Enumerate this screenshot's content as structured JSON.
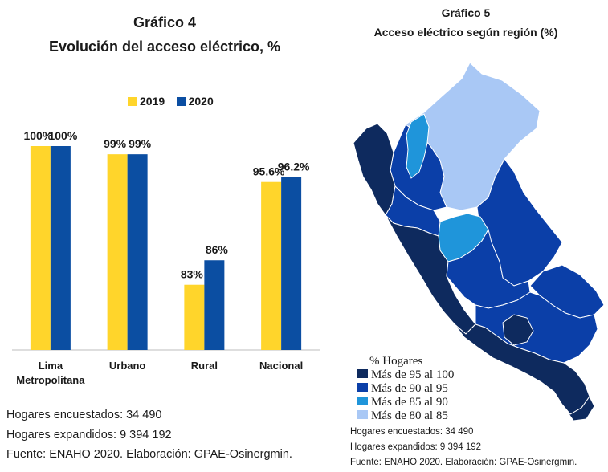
{
  "chart4": {
    "title": "Gráfico 4",
    "subtitle": "Evolución del acceso eléctrico, %",
    "colors": {
      "2019": "#FFD52B",
      "2020": "#0B4EA2"
    },
    "footnotes": [
      "Hogares encuestados: 34 490",
      "Hogares expandidos: 9 394 192",
      "Fuente: ENAHO 2020. Elaboración: GPAE-Osinergmin."
    ]
  },
  "chart5": {
    "title": "Gráfico 5",
    "subtitle": "Acceso eléctrico según región (%)",
    "legend_title": "% Hogares",
    "legend": [
      {
        "label": "Más de 95 al 100",
        "color": "#0E2A5E"
      },
      {
        "label": "Más de 90 al 95",
        "color": "#0B3FA8"
      },
      {
        "label": "Más de 85 al 90",
        "color": "#1F95DA"
      },
      {
        "label": "Más de 80 al 85",
        "color": "#A9C8F5"
      }
    ],
    "footnotes": [
      "Hogares encuestados: 34 490",
      "Hogares expandidos: 9 394 192",
      "Fuente: ENAHO 2020. Elaboración: GPAE-Osinergmin."
    ]
  },
  "chart_data": [
    {
      "type": "bar",
      "title": "Gráfico 4",
      "subtitle": "Evolución del acceso eléctrico, %",
      "categories": [
        "Lima Metropolitana",
        "Urbano",
        "Rural",
        "Nacional"
      ],
      "category_lines": [
        [
          "Lima",
          "Metropolitana"
        ],
        [
          "Urbano"
        ],
        [
          "Rural"
        ],
        [
          "Nacional"
        ]
      ],
      "series": [
        {
          "name": "2019",
          "values": [
            100,
            99,
            83,
            95.6
          ],
          "labels": [
            "100%",
            "99%",
            "83%",
            "95.6%"
          ]
        },
        {
          "name": "2020",
          "values": [
            100,
            99,
            86,
            96.2
          ],
          "labels": [
            "100%",
            "99%",
            "86%",
            "96.2%"
          ]
        }
      ],
      "ylim": [
        75,
        100
      ],
      "grid": false,
      "legend_position": "top"
    },
    {
      "type": "map",
      "title": "Gráfico 5",
      "subtitle": "Acceso eléctrico según región (%)",
      "legend_title": "% Hogares",
      "classes": [
        "Más de 95 al 100",
        "Más de 90 al 95",
        "Más de 85 al 90",
        "Más de 80 al 85"
      ]
    }
  ]
}
